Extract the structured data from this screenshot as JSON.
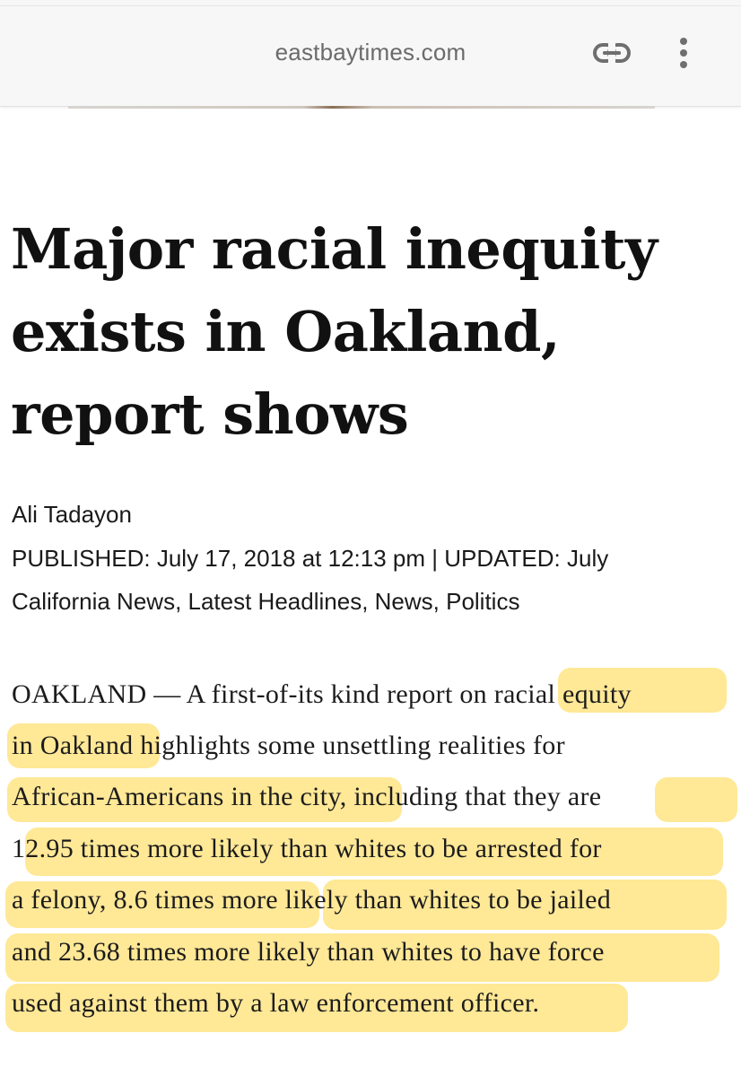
{
  "browser": {
    "url": "eastbaytimes.com",
    "link_icon": "link-icon",
    "menu_icon": "more-vertical-icon"
  },
  "article": {
    "headline_lines": [
      "Major racial inequity",
      "exists in Oakland,",
      "report shows"
    ],
    "author": "Ali Tadayon",
    "published": "PUBLISHED: July 17, 2018 at 12:13 pm | UPDATED: July",
    "categories": "California News, Latest Headlines, News, Politics",
    "body_lines": [
      "OAKLAND — A first-of-its kind report on racial equity",
      "in Oakland highlights some unsettling realities for",
      "African-Americans in the city, including that they are",
      "12.95 times more likely than whites to be arrested for",
      "a felony, 8.6 times more likely than whites to be jailed",
      "and 23.68 times more likely than whites to have force",
      "used against them by a law enforcement officer."
    ]
  },
  "colors": {
    "highlighter": "#ffd640",
    "text": "#1c1c1c",
    "toolbar": "#f7f7f7"
  }
}
